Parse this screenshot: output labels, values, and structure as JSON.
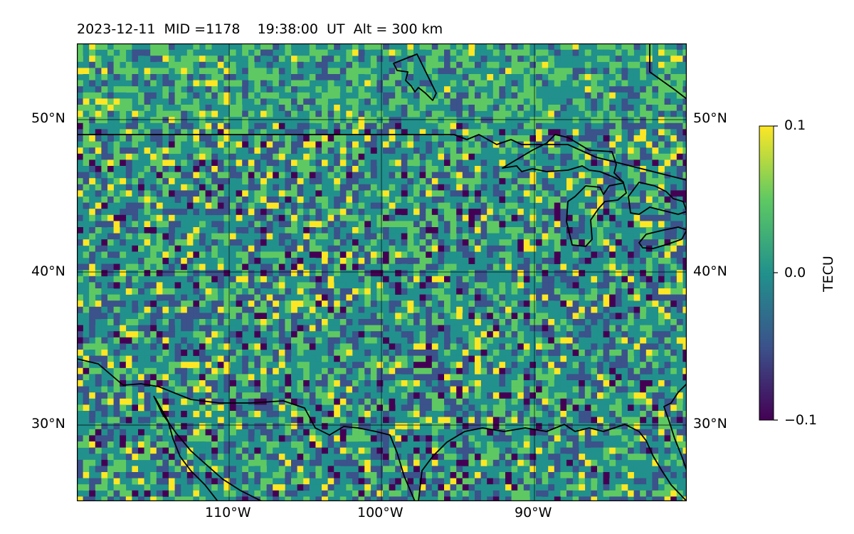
{
  "title": "2023-12-11  MID =1178    19:38:00  UT  Alt = 300 km",
  "map": {
    "extent": {
      "lon_min": -120,
      "lon_max": -80,
      "lat_min": 25,
      "lat_max": 55
    },
    "lat_ticks": [
      "50°N",
      "40°N",
      "30°N"
    ],
    "lon_ticks": [
      "110°W",
      "100°W",
      "90°W"
    ],
    "gridlines": true,
    "features": [
      "coastlines",
      "us-canada-border",
      "great-lakes"
    ]
  },
  "colorbar": {
    "label": "TECU",
    "ticks": [
      "0.1",
      "0.0",
      "−0.1"
    ],
    "vmin": -0.1,
    "vmax": 0.1,
    "colormap": "viridis",
    "colors": [
      "#440154",
      "#3b528b",
      "#21918c",
      "#5ec962",
      "#fde725"
    ]
  }
}
